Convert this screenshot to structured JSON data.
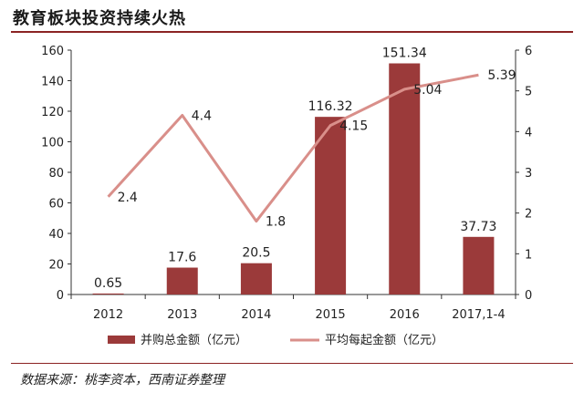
{
  "title": "教育板块投资持续火热",
  "source": "数据来源：桃李资本，西南证券整理",
  "colors": {
    "bar": "#9b3a3a",
    "line": "#d98f8a"
  },
  "chart_data": {
    "type": "bar+line",
    "categories": [
      "2012",
      "2013",
      "2014",
      "2015",
      "2016",
      "2017,1-4"
    ],
    "series": [
      {
        "name": "并购总金额（亿元）",
        "type": "bar",
        "axis": "left",
        "values": [
          0.65,
          17.6,
          20.5,
          116.32,
          151.34,
          37.73
        ],
        "labels": [
          "0.65",
          "17.6",
          "20.5",
          "116.32",
          "151.34",
          "37.73"
        ]
      },
      {
        "name": "平均每起金额（亿元）",
        "type": "line",
        "axis": "right",
        "values": [
          2.4,
          4.4,
          1.8,
          4.15,
          5.04,
          5.39
        ],
        "labels": [
          "2.4",
          "4.4",
          "1.8",
          "4.15",
          "5.04",
          "5.39"
        ]
      }
    ],
    "y_left": {
      "min": 0,
      "max": 160,
      "ticks": [
        "0",
        "20",
        "40",
        "60",
        "80",
        "100",
        "120",
        "140",
        "160"
      ]
    },
    "y_right": {
      "min": 0,
      "max": 6,
      "ticks": [
        "0",
        "1",
        "2",
        "3",
        "4",
        "5",
        "6"
      ]
    },
    "legend_position": "bottom",
    "grid": false
  }
}
